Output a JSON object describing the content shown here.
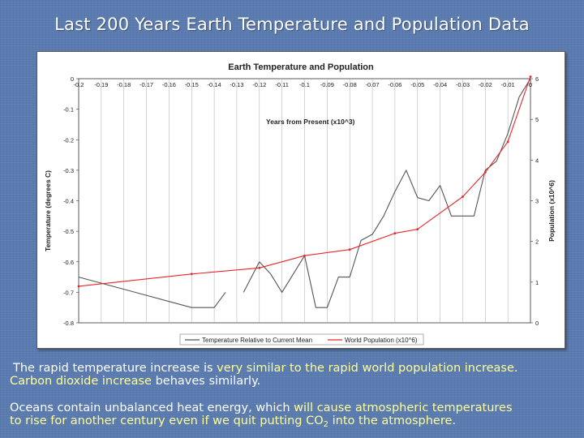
{
  "slide": {
    "title": "Last 200 Years Earth Temperature and Population Data",
    "caption_1": {
      "p1": "The rapid temperature increase is ",
      "p2": "very similar to the rapid world population increase",
      "p3": ".",
      "p4": "Carbon dioxide increase",
      "p5": " behaves similarly."
    },
    "caption_2": {
      "p1": "Oceans contain unbalanced heat energy, which ",
      "p2": "will cause atmospheric temperatures",
      "p3": "to rise for another century even if we quit putting CO",
      "p3_sub": "2",
      "p4": " into the atmosphere",
      "p5": "."
    },
    "colors": {
      "background": "#5a7bb0",
      "highlight": "#ffff99",
      "temperature_line": "#555555",
      "population_line": "#e8262b"
    }
  },
  "chart_data": {
    "type": "line",
    "title": "Earth Temperature and Population",
    "xlabel": "Years from Present (x10^3)",
    "ylabel": "Temperature (degrees C)",
    "y2label": "Population (x10^6)",
    "x_ticks": [
      "-0.2",
      "-0.19",
      "-0.18",
      "-0.17",
      "-0.16",
      "-0.15",
      "-0.14",
      "-0.13",
      "-0.12",
      "-0.11",
      "-0.1",
      "-0.09",
      "-0.08",
      "-0.07",
      "-0.06",
      "-0.05",
      "-0.04",
      "-0.03",
      "-0.02",
      "-0.01",
      "0"
    ],
    "y_ticks": [
      "0",
      "-0.1",
      "-0.2",
      "-0.3",
      "-0.4",
      "-0.5",
      "-0.6",
      "-0.7",
      "-0.8"
    ],
    "y2_ticks": [
      "6",
      "5",
      "4",
      "3",
      "2",
      "1",
      "0"
    ],
    "xlim": [
      -0.2,
      0
    ],
    "ylim": [
      -0.8,
      0
    ],
    "y2lim": [
      0,
      6
    ],
    "grid": "vertical",
    "legend_position": "bottom-center",
    "series": [
      {
        "name": "Temperature Relative to Current Mean",
        "axis": "left",
        "color": "#555555",
        "segments": [
          [
            [
              -0.2,
              -0.65
            ],
            [
              -0.19,
              -0.67
            ],
            [
              -0.18,
              -0.69
            ],
            [
              -0.17,
              -0.71
            ],
            [
              -0.16,
              -0.73
            ],
            [
              -0.15,
              -0.75
            ],
            [
              -0.145,
              -0.75
            ],
            [
              -0.14,
              -0.75
            ],
            [
              -0.135,
              -0.7
            ]
          ],
          [
            [
              -0.127,
              -0.7
            ],
            [
              -0.12,
              -0.6
            ],
            [
              -0.115,
              -0.64
            ],
            [
              -0.11,
              -0.7
            ],
            [
              -0.105,
              -0.64
            ],
            [
              -0.1,
              -0.58
            ],
            [
              -0.095,
              -0.75
            ],
            [
              -0.09,
              -0.75
            ],
            [
              -0.085,
              -0.65
            ],
            [
              -0.08,
              -0.65
            ],
            [
              -0.075,
              -0.53
            ],
            [
              -0.07,
              -0.51
            ],
            [
              -0.065,
              -0.45
            ],
            [
              -0.06,
              -0.37
            ],
            [
              -0.055,
              -0.3
            ],
            [
              -0.05,
              -0.39
            ],
            [
              -0.045,
              -0.4
            ],
            [
              -0.04,
              -0.35
            ],
            [
              -0.035,
              -0.45
            ],
            [
              -0.03,
              -0.45
            ],
            [
              -0.025,
              -0.45
            ],
            [
              -0.02,
              -0.3
            ],
            [
              -0.015,
              -0.27
            ],
            [
              -0.01,
              -0.18
            ],
            [
              -0.005,
              -0.06
            ],
            [
              0,
              0
            ]
          ]
        ]
      },
      {
        "name": "World Population (x10^6)",
        "axis": "right",
        "color": "#e8262b",
        "points": [
          [
            -0.2,
            0.9
          ],
          [
            -0.15,
            1.2
          ],
          [
            -0.12,
            1.35
          ],
          [
            -0.1,
            1.65
          ],
          [
            -0.08,
            1.8
          ],
          [
            -0.06,
            2.2
          ],
          [
            -0.05,
            2.3
          ],
          [
            -0.03,
            3.1
          ],
          [
            -0.02,
            3.7
          ],
          [
            -0.01,
            4.45
          ],
          [
            0,
            6.05
          ]
        ]
      }
    ]
  }
}
